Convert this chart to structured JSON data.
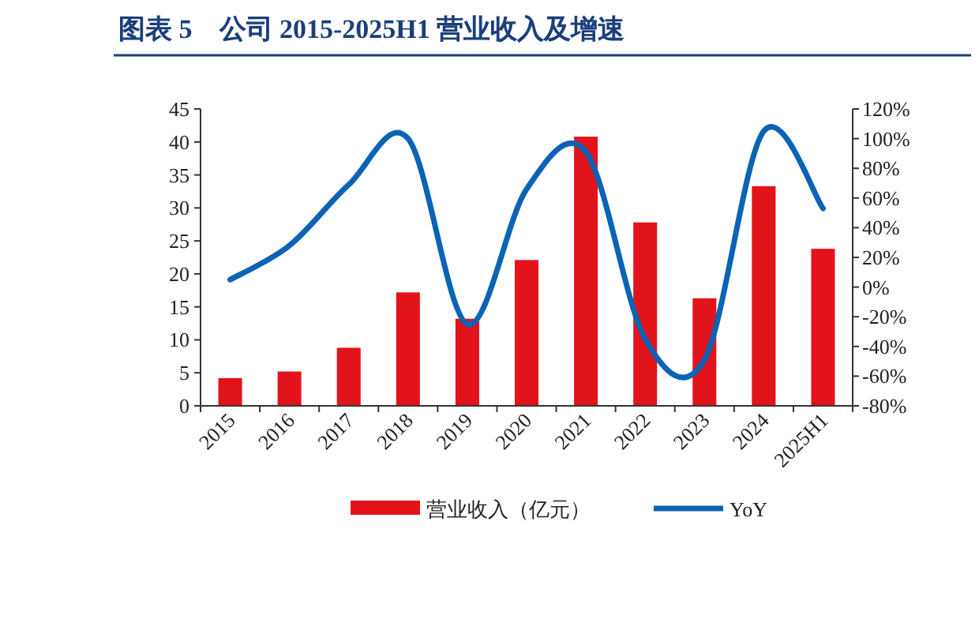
{
  "chart_data": {
    "type": "bar",
    "title": "图表 5　公司 2015-2025H1 营业收入及增速",
    "categories": [
      "2015",
      "2016",
      "2017",
      "2018",
      "2019",
      "2020",
      "2021",
      "2022",
      "2023",
      "2024",
      "2025H1"
    ],
    "series": [
      {
        "name": "营业收入（亿元）",
        "color": "#e3131b",
        "values": [
          4.2,
          5.2,
          8.8,
          17.2,
          13.2,
          22.1,
          40.8,
          27.8,
          16.3,
          33.3,
          23.8
        ]
      },
      {
        "name": "YoY",
        "type": "line",
        "axis": "y2",
        "color": "#0b63b5",
        "values": [
          5,
          28,
          69,
          100,
          -25,
          66,
          91,
          -35,
          -49,
          105,
          53
        ]
      }
    ],
    "ylim": [
      0,
      45
    ],
    "yticks": [
      0,
      5,
      10,
      15,
      20,
      25,
      30,
      35,
      40,
      45
    ],
    "y2lim": [
      -80,
      120
    ],
    "y2ticks": [
      {
        "value": -80,
        "label": "-80%"
      },
      {
        "value": -60,
        "label": "-60%"
      },
      {
        "value": -40,
        "label": "-40%"
      },
      {
        "value": -20,
        "label": "-20%"
      },
      {
        "value": 0,
        "label": "0%"
      },
      {
        "value": 20,
        "label": "20%"
      },
      {
        "value": 40,
        "label": "40%"
      },
      {
        "value": 60,
        "label": "60%"
      },
      {
        "value": 80,
        "label": "80%"
      },
      {
        "value": 100,
        "label": "100%"
      },
      {
        "value": 120,
        "label": "120%"
      }
    ],
    "grid": false,
    "legend": "bottom",
    "marker": "none",
    "line_style": "solid"
  }
}
